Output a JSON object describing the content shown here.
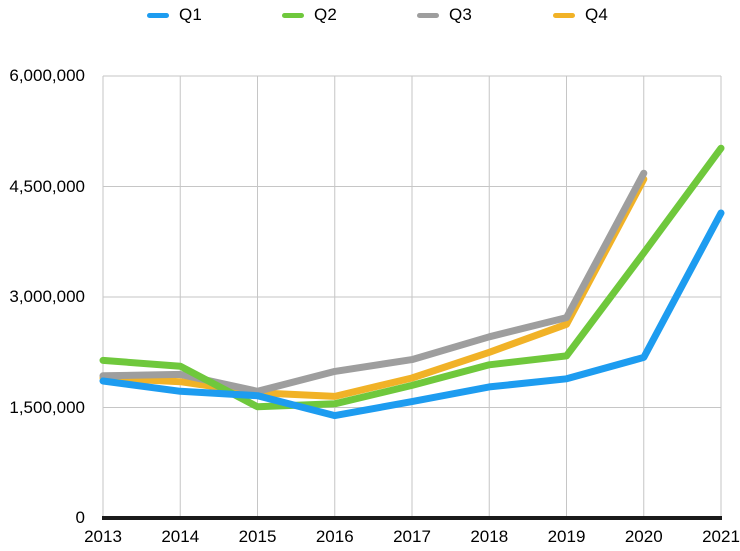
{
  "chart_data": {
    "type": "line",
    "title": "",
    "xlabel": "",
    "ylabel": "",
    "x": [
      "2013",
      "2014",
      "2015",
      "2016",
      "2017",
      "2018",
      "2019",
      "2020",
      "2021"
    ],
    "series": [
      {
        "name": "Q1",
        "color": "#1D9CF0",
        "values": [
          1860000,
          1720000,
          1660000,
          1390000,
          1580000,
          1780000,
          1890000,
          2180000,
          4140000
        ]
      },
      {
        "name": "Q2",
        "color": "#6FC83C",
        "values": [
          2140000,
          2060000,
          1510000,
          1550000,
          1800000,
          2080000,
          2200000,
          3600000,
          5020000
        ]
      },
      {
        "name": "Q3",
        "color": "#9E9E9E",
        "values": [
          1930000,
          1950000,
          1720000,
          1990000,
          2150000,
          2460000,
          2720000,
          4680000,
          null
        ]
      },
      {
        "name": "Q4",
        "color": "#F1B227",
        "values": [
          1900000,
          1850000,
          1700000,
          1650000,
          1900000,
          2250000,
          2630000,
          4600000,
          null
        ]
      }
    ],
    "draw_order": [
      "Q4",
      "Q3",
      "Q2",
      "Q1"
    ],
    "ylim": [
      0,
      6000000
    ],
    "y_ticks": [
      0,
      1500000,
      3000000,
      4500000,
      6000000
    ],
    "y_tick_labels": [
      "0",
      "1,500,000",
      "3,000,000",
      "4,500,000",
      "6,000,000"
    ],
    "grid": true,
    "legend_position": "top",
    "colors": {
      "grid": "#C6C6C6",
      "axis": "#1A1A1A",
      "text": "#000000",
      "background": "#FFFFFF"
    }
  }
}
